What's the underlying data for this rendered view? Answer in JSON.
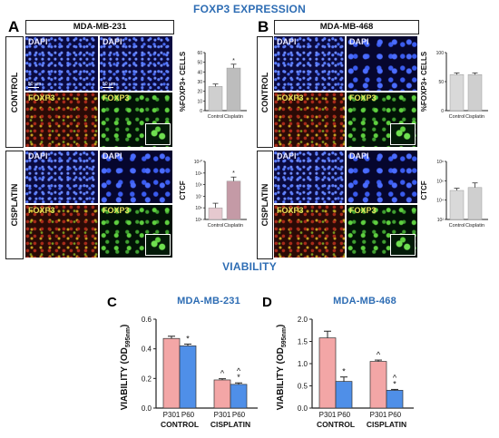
{
  "figure": {
    "top_title": "FOXP3 EXPRESSION",
    "bottom_title": "VIABILITY",
    "panels": {
      "A": {
        "letter": "A",
        "cell_line": "MDA-MB-231"
      },
      "B": {
        "letter": "B",
        "cell_line": "MDA-MB-468"
      },
      "C": {
        "letter": "C",
        "cell_line": "MDA-MB-231"
      },
      "D": {
        "letter": "D",
        "cell_line": "MDA-MB-468"
      }
    },
    "rows": {
      "control": "CONTROL",
      "cisplatin": "CISPLATIN"
    },
    "stains": {
      "dapi": "DAPI",
      "foxp3": "FOXP3"
    },
    "scale_bar": "50 µm"
  },
  "chart_data": [
    {
      "id": "A-top",
      "type": "bar",
      "categories": [
        "Control",
        "Cisplatin"
      ],
      "values": [
        25,
        44
      ],
      "errors": [
        2.5,
        4
      ],
      "ylabel": "%FOXP3+ CELLS",
      "ylim": [
        0,
        60
      ],
      "yticks": [
        "0",
        "10",
        "20",
        "30",
        "40",
        "50",
        "60"
      ],
      "significance": [
        "",
        "*"
      ],
      "colors": [
        "#cfcfcf",
        "#bdbdbd"
      ]
    },
    {
      "id": "A-bottom",
      "type": "bar",
      "scale": "log",
      "categories": [
        "Control",
        "Cisplatin"
      ],
      "values": [
        1000000,
        200000000
      ],
      "errors_upper": [
        1500000,
        250000000
      ],
      "ylabel": "CTCF",
      "ylim": [
        100000,
        10000000000
      ],
      "yticks": [
        "10⁵",
        "10⁶",
        "10⁷",
        "10⁸",
        "10⁹",
        "10¹⁰"
      ],
      "significance": [
        "",
        "*"
      ],
      "colors": [
        "#e6c9cf",
        "#c49aa6"
      ]
    },
    {
      "id": "B-top",
      "type": "bar",
      "categories": [
        "Control",
        "Cisplatin"
      ],
      "values": [
        62,
        62
      ],
      "errors": [
        3,
        3
      ],
      "ylabel": "%FOXP3+ CELLS",
      "ylim": [
        0,
        100
      ],
      "yticks": [
        "0",
        "50",
        "100"
      ],
      "colors": [
        "#d9d9d9",
        "#cfcfcf"
      ]
    },
    {
      "id": "B-bottom",
      "type": "bar",
      "scale": "log",
      "categories": [
        "Control",
        "Cisplatin"
      ],
      "values": [
        100000,
        200000
      ],
      "errors_upper": [
        70000,
        400000
      ],
      "ylabel": "CTCF",
      "ylim": [
        100,
        100000000
      ],
      "yticks": [
        "10²",
        "10⁴",
        "10⁶",
        "10⁸"
      ],
      "colors": [
        "#d9d9d9",
        "#cfcfcf"
      ]
    },
    {
      "id": "C",
      "type": "bar",
      "groups": [
        "CONTROL",
        "CISPLATIN"
      ],
      "bar_labels": [
        "P301",
        "P60"
      ],
      "series": [
        {
          "name": "P301",
          "values": [
            0.47,
            0.19
          ],
          "errors": [
            0.015,
            0.008
          ],
          "color": "#f3a6a6",
          "sig": [
            "",
            "^"
          ]
        },
        {
          "name": "P60",
          "values": [
            0.42,
            0.16
          ],
          "errors": [
            0.012,
            0.01
          ],
          "color": "#4f8fe8",
          "sig": [
            "*",
            "^\n*"
          ]
        }
      ],
      "ylabel": "VIABILITY (OD595nm)",
      "ylim": [
        0,
        0.6
      ],
      "yticks": [
        "0.0",
        "0.2",
        "0.4",
        "0.6"
      ],
      "ytick_values": [
        0,
        0.2,
        0.4,
        0.6
      ]
    },
    {
      "id": "D",
      "type": "bar",
      "groups": [
        "CONTROL",
        "CISPLATIN"
      ],
      "bar_labels": [
        "P301",
        "P60"
      ],
      "series": [
        {
          "name": "P301",
          "values": [
            1.58,
            1.05
          ],
          "errors": [
            0.15,
            0.03
          ],
          "color": "#f3a6a6",
          "sig": [
            "",
            "^"
          ]
        },
        {
          "name": "P60",
          "values": [
            0.6,
            0.4
          ],
          "errors": [
            0.1,
            0.02
          ],
          "color": "#4f8fe8",
          "sig": [
            "*",
            "^\n*"
          ]
        }
      ],
      "ylabel": "VIABILITY (OD595nm)",
      "ylim": [
        0,
        2.0
      ],
      "yticks": [
        "0.0",
        "0.5",
        "1.0",
        "1.5",
        "2.0"
      ],
      "ytick_values": [
        0,
        0.5,
        1.0,
        1.5,
        2.0
      ]
    }
  ]
}
